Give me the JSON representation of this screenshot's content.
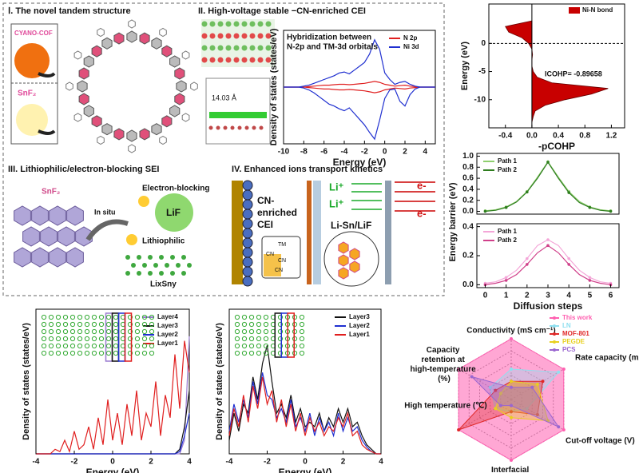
{
  "panels": {
    "i": {
      "title": "Ⅰ. The novel tandem structure",
      "cof": "CYANO-COF",
      "snf2": "SnF₂"
    },
    "ii": {
      "title": "II. High-voltage stable −CN-enriched CEI",
      "spacing": "14.03 Å"
    },
    "iii": {
      "title": "III. Lithiophilic/electron-blocking SEI",
      "snf2": "SnF₂",
      "in_situ": "In situ",
      "blocking": "Electron-blocking",
      "lif": "LiF",
      "lithiophilic": "Lithiophilic",
      "alloy": "LixSny"
    },
    "iv": {
      "title": "IV. Enhanced ions transport kinetics",
      "cei": [
        "CN-",
        "enriched",
        "CEI"
      ],
      "tm": "TM",
      "cn": [
        "CN",
        "CN",
        "CN"
      ],
      "li": [
        "Li⁺",
        "Li⁺"
      ],
      "e": [
        "e-",
        "e-"
      ],
      "interface": "Li-Sn/LiF"
    }
  },
  "chart_data": [
    {
      "type": "line",
      "xlabel": "Energy (eV)",
      "ylabel": "Density of states (states/eV)",
      "annotation": [
        "Hybridization between",
        "N-2p and TM-3d orbitals"
      ],
      "x": [
        -10,
        -9.5,
        -9,
        -8.5,
        -8,
        -7.5,
        -7,
        -6.5,
        -6,
        -5.5,
        -5,
        -4.5,
        -4,
        -3.5,
        -3,
        -2.5,
        -2,
        -1.5,
        -1,
        -0.5,
        0,
        0.5,
        1,
        1.5,
        2,
        2.5,
        3,
        3.5,
        4,
        4.5,
        5
      ],
      "series": [
        {
          "name": "N 2p",
          "color": "#e02020",
          "values": [
            0,
            0,
            0,
            0,
            0,
            0.05,
            0.1,
            0.15,
            0.2,
            0.2,
            0.25,
            0.3,
            0.3,
            0.25,
            0.3,
            0.35,
            0.4,
            0.5,
            0.6,
            0.5,
            0.3,
            0.2,
            0.1,
            0.15,
            0.2,
            0.1,
            0.05,
            0,
            0,
            0,
            0
          ]
        },
        {
          "name": "N 2p",
          "color": "#e02020",
          "values": [
            0,
            0,
            0,
            0,
            0,
            -0.05,
            -0.1,
            -0.15,
            -0.2,
            -0.2,
            -0.25,
            -0.3,
            -0.3,
            -0.25,
            -0.3,
            -0.35,
            -0.4,
            -0.5,
            -0.6,
            -0.5,
            -0.3,
            -0.2,
            -0.1,
            -0.15,
            -0.2,
            -0.1,
            -0.05,
            0,
            0,
            0,
            0
          ]
        },
        {
          "name": "Ni 3d",
          "color": "#2030d0",
          "values": [
            0,
            0,
            0,
            0,
            0.1,
            0.2,
            0.4,
            0.6,
            0.8,
            1.0,
            1.2,
            1.5,
            1.6,
            1.4,
            1.8,
            2.2,
            2.6,
            3.5,
            5.0,
            4.0,
            1.5,
            0.8,
            0.3,
            0.5,
            0.6,
            0.3,
            0.1,
            0,
            0,
            0,
            0
          ]
        },
        {
          "name": "Ni 3d",
          "color": "#2030d0",
          "values": [
            0,
            0,
            0,
            0,
            -0.1,
            -0.3,
            -0.6,
            -1.0,
            -1.4,
            -1.8,
            -2.0,
            -2.3,
            -2.5,
            -2.2,
            -2.8,
            -3.4,
            -4.0,
            -4.8,
            -5.5,
            -3.5,
            -1.2,
            -0.3,
            -0.2,
            -1.5,
            -2.0,
            -0.8,
            -0.2,
            0,
            0,
            0,
            0
          ]
        }
      ],
      "xlim": [
        -10,
        5
      ],
      "xticks": [
        -10,
        -8,
        -6,
        -4,
        -2,
        0,
        2,
        4
      ],
      "ylim": [
        -6,
        6
      ],
      "legend": "upper right"
    },
    {
      "type": "area",
      "xlabel": "-pCOHP",
      "ylabel": "Energy (eV)",
      "annotation": [
        "ICOHP= -0.89658"
      ],
      "name": "Ni-N bond",
      "color": "#c80000",
      "y": [
        -14,
        -13,
        -12,
        -11,
        -10,
        -9,
        -8,
        -7,
        -6,
        -5,
        -4,
        -3,
        -2,
        -1,
        0,
        1,
        2,
        3,
        4
      ],
      "values": [
        0,
        0.02,
        0.05,
        0.2,
        0.5,
        0.9,
        1.15,
        0.3,
        0.08,
        0.02,
        0,
        0,
        0.01,
        0,
        -0.05,
        -0.15,
        -0.35,
        -0.4,
        0
      ],
      "xlim": [
        -0.65,
        1.4
      ],
      "xticks": [
        -0.4,
        {
          "value": 0,
          "label": "0.0"
        },
        0.4,
        0.8,
        1.2
      ],
      "ylim": [
        -15,
        7
      ],
      "yticks": [
        -10,
        -5,
        0
      ],
      "legend": "upper right"
    },
    {
      "type": "line",
      "ylabel": "Energy barrier (eV)",
      "markers": true,
      "x": [
        0,
        0.5,
        1,
        1.5,
        2,
        2.5,
        3,
        3.5,
        4,
        4.5,
        5,
        5.5,
        6
      ],
      "series": [
        {
          "name": "Path 1",
          "color": "#8fcf6f",
          "values": [
            0.01,
            0.03,
            0.08,
            0.18,
            0.36,
            0.62,
            0.9,
            0.62,
            0.36,
            0.18,
            0.08,
            0.03,
            0.01
          ]
        },
        {
          "name": "Path 2",
          "color": "#2e7d1e",
          "values": [
            0,
            0.02,
            0.07,
            0.17,
            0.35,
            0.6,
            0.89,
            0.6,
            0.34,
            0.16,
            0.07,
            0.02,
            0
          ]
        }
      ],
      "xlim": [
        -0.4,
        6.4
      ],
      "ylim": [
        -0.05,
        1.05
      ],
      "yticks": [
        {
          "value": 0,
          "label": "0.0"
        },
        0.2,
        0.4,
        0.6,
        0.8,
        {
          "value": 1,
          "label": "1.0"
        }
      ],
      "legend": "upper left"
    },
    {
      "type": "line",
      "xlabel": "Diffusion steps",
      "markers": true,
      "x": [
        0,
        0.5,
        1,
        1.5,
        2,
        2.5,
        3,
        3.5,
        4,
        4.5,
        5,
        5.5,
        6
      ],
      "series": [
        {
          "name": "Path 1",
          "color": "#f4a6d8",
          "values": [
            0.01,
            0.02,
            0.05,
            0.1,
            0.18,
            0.27,
            0.31,
            0.27,
            0.18,
            0.1,
            0.05,
            0.02,
            0.01
          ]
        },
        {
          "name": "Path 2",
          "color": "#d0408a",
          "values": [
            0,
            0.01,
            0.03,
            0.07,
            0.14,
            0.22,
            0.27,
            0.22,
            0.14,
            0.07,
            0.03,
            0.01,
            0
          ]
        }
      ],
      "xlim": [
        -0.4,
        6.4
      ],
      "xticks": [
        0,
        1,
        2,
        3,
        4,
        5,
        6
      ],
      "ylim": [
        -0.02,
        0.42
      ],
      "yticks": [
        {
          "value": 0,
          "label": "0.0"
        },
        0.2,
        0.4
      ],
      "legend": "upper left"
    },
    {
      "type": "line",
      "xlabel": "Energy (eV)",
      "ylabel": "Density of states (states/eV)",
      "x": [
        -4,
        -3.75,
        -3.5,
        -3.25,
        -3,
        -2.75,
        -2.5,
        -2.25,
        -2,
        -1.75,
        -1.5,
        -1.25,
        -1,
        -0.75,
        -0.5,
        -0.25,
        0,
        0.25,
        0.5,
        0.75,
        1,
        1.25,
        1.5,
        1.75,
        2,
        2.25,
        2.5,
        2.75,
        3,
        3.25,
        3.5,
        3.75,
        4
      ],
      "series": [
        {
          "name": "Layer4",
          "color": "#9a7bd0",
          "values": [
            0,
            0,
            0,
            0,
            0,
            0,
            0,
            0,
            0,
            0,
            0,
            0,
            0,
            0,
            0,
            0,
            0,
            0,
            0,
            0,
            0,
            0,
            0,
            0,
            0,
            0,
            0,
            0,
            0,
            0,
            0,
            0.3,
            2.6
          ]
        },
        {
          "name": "Layer3",
          "color": "#111111",
          "values": [
            0,
            0,
            0,
            0,
            0,
            0,
            0,
            0,
            0,
            0,
            0,
            0,
            0,
            0,
            0,
            0,
            0,
            0,
            0,
            0,
            0,
            0,
            0,
            0,
            0,
            0,
            0,
            0,
            0,
            0,
            0.1,
            0.6,
            1.4
          ]
        },
        {
          "name": "Layer2",
          "color": "#1f2fd0",
          "values": [
            0,
            0,
            0,
            0,
            0,
            0,
            0,
            0,
            0,
            0,
            0,
            0,
            0,
            0,
            0,
            0,
            0,
            0,
            0,
            0,
            0,
            0,
            0,
            0,
            0,
            0,
            0,
            0,
            0,
            0,
            0.05,
            0.4,
            0.9
          ]
        },
        {
          "name": "Layer1",
          "color": "#e01e1e",
          "values": [
            0,
            0,
            0,
            0,
            0.1,
            0.05,
            0.3,
            0.05,
            0.5,
            0.1,
            0.2,
            0.6,
            0.1,
            0.8,
            0.2,
            1.2,
            0.3,
            0.9,
            0.2,
            1.1,
            0.4,
            1.4,
            0.3,
            0.9,
            0.6,
            1.6,
            0.4,
            1.3,
            0.8,
            2.2,
            1.0,
            2.5,
            1.8
          ]
        }
      ],
      "xlim": [
        -4,
        4
      ],
      "xticks": [
        -4,
        -2,
        0,
        2,
        4
      ],
      "ylim": [
        0,
        3.2
      ],
      "legend": "upper right"
    },
    {
      "type": "line",
      "xlabel": "Energy (eV)",
      "ylabel": "Density of states (states/eV)",
      "x": [
        -4,
        -3.75,
        -3.5,
        -3.25,
        -3,
        -2.75,
        -2.5,
        -2.25,
        -2,
        -1.75,
        -1.5,
        -1.25,
        -1,
        -0.75,
        -0.5,
        -0.25,
        0,
        0.25,
        0.5,
        0.75,
        1,
        1.25,
        1.5,
        1.75,
        2,
        2.25,
        2.5,
        2.75,
        3,
        3.25,
        3.5,
        3.75,
        4
      ],
      "series": [
        {
          "name": "Layer3",
          "color": "#111111",
          "values": [
            0.3,
            0.9,
            0.5,
            1.1,
            0.9,
            1.7,
            1.2,
            2.0,
            2.4,
            1.6,
            0.9,
            1.1,
            0.8,
            1.3,
            0.7,
            1.0,
            0.6,
            0.7,
            0.6,
            0.9,
            0.5,
            0.8,
            0.6,
            1.0,
            0.7,
            1.0,
            0.6,
            0.7,
            0.4,
            0.2,
            0.1,
            0,
            0
          ]
        },
        {
          "name": "Layer2",
          "color": "#1f2fd0",
          "values": [
            0.5,
            1.1,
            0.7,
            1.2,
            0.8,
            1.6,
            1.1,
            1.8,
            1.3,
            1.2,
            0.8,
            1.0,
            0.7,
            1.2,
            0.6,
            0.8,
            0.5,
            0.9,
            0.4,
            0.8,
            0.5,
            0.7,
            0.4,
            0.9,
            0.5,
            0.8,
            0.5,
            0.6,
            0.3,
            0.15,
            0.05,
            0,
            0
          ]
        },
        {
          "name": "Layer1",
          "color": "#e01e1e",
          "values": [
            0.4,
            1.0,
            0.6,
            1.3,
            0.7,
            1.5,
            1.0,
            1.7,
            1.1,
            1.4,
            0.7,
            1.2,
            0.6,
            1.1,
            0.5,
            0.9,
            0.4,
            0.8,
            0.5,
            0.7,
            0.4,
            0.6,
            0.5,
            0.8,
            0.6,
            0.9,
            0.4,
            0.5,
            0.2,
            0.1,
            0.05,
            0,
            0
          ]
        }
      ],
      "xlim": [
        -4,
        4
      ],
      "xticks": [
        -4,
        -2,
        0,
        2,
        4
      ],
      "ylim": [
        0,
        3.2
      ],
      "legend": "upper right"
    },
    {
      "type": "radar",
      "categories": [
        "Conductivity (mS cm⁻¹)",
        "Rate capacity (mAh/g)",
        "Cut-off voltage (V)",
        "Interfacial stability (h)",
        "High temperature (℃)",
        "Capacity retention at high-temperature (%)"
      ],
      "series": [
        {
          "name": "This work",
          "color": "#ff5fb0",
          "values": [
            1,
            1,
            1,
            1,
            1,
            1
          ]
        },
        {
          "name": "LN",
          "color": "#8fe0f0",
          "values": [
            0.5,
            0.9,
            0.3,
            0.2,
            0.3,
            0.4
          ]
        },
        {
          "name": "MOF-801",
          "color": "#e02828",
          "values": [
            0.3,
            0.6,
            0.5,
            0.2,
            1,
            0.3
          ]
        },
        {
          "name": "PEGDE",
          "color": "#e8d020",
          "values": [
            0.3,
            0.5,
            0.7,
            0.3,
            0.3,
            0.2
          ]
        },
        {
          "name": "PCS",
          "color": "#9a66d0",
          "values": [
            0.2,
            0.4,
            0.9,
            0.1,
            0.2,
            0.75
          ]
        }
      ],
      "rlim": [
        0,
        1
      ],
      "legend": "upper right"
    }
  ]
}
